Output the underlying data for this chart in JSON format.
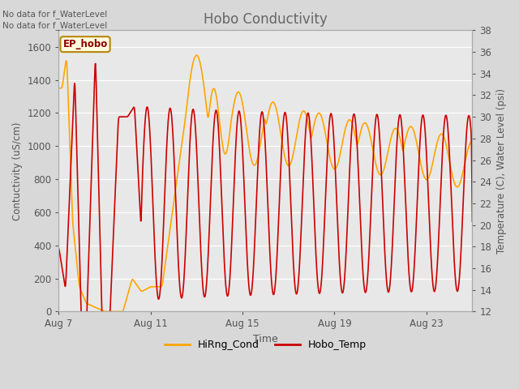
{
  "title": "Hobo Conductivity",
  "xlabel": "Time",
  "ylabel_left": "Contuctivity (uS/cm)",
  "ylabel_right": "Temperature (C), Water Level (psi)",
  "annotation_line1": "No data for f_WaterLevel",
  "annotation_line2": "No data for f_WaterLevel",
  "ep_hobo_label": "EP_hobo",
  "legend_entries": [
    "HiRng_Cond",
    "Hobo_Temp"
  ],
  "legend_colors": [
    "#FFA500",
    "#CC0000"
  ],
  "ylim_left": [
    0,
    1700
  ],
  "ylim_right": [
    12,
    38
  ],
  "yticks_left": [
    0,
    200,
    400,
    600,
    800,
    1000,
    1200,
    1400,
    1600
  ],
  "yticks_right": [
    12,
    14,
    16,
    18,
    20,
    22,
    24,
    26,
    28,
    30,
    32,
    34,
    36,
    38
  ],
  "fig_bg_color": "#d8d8d8",
  "plot_bg_color": "#e8e8e8",
  "grid_color": "#ffffff",
  "title_color": "#666666",
  "axis_label_color": "#555555",
  "tick_color": "#555555",
  "annotation_color": "#555555",
  "xstart_day": 7,
  "xend_day": 25,
  "xtick_days": [
    7,
    11,
    15,
    19,
    23
  ]
}
